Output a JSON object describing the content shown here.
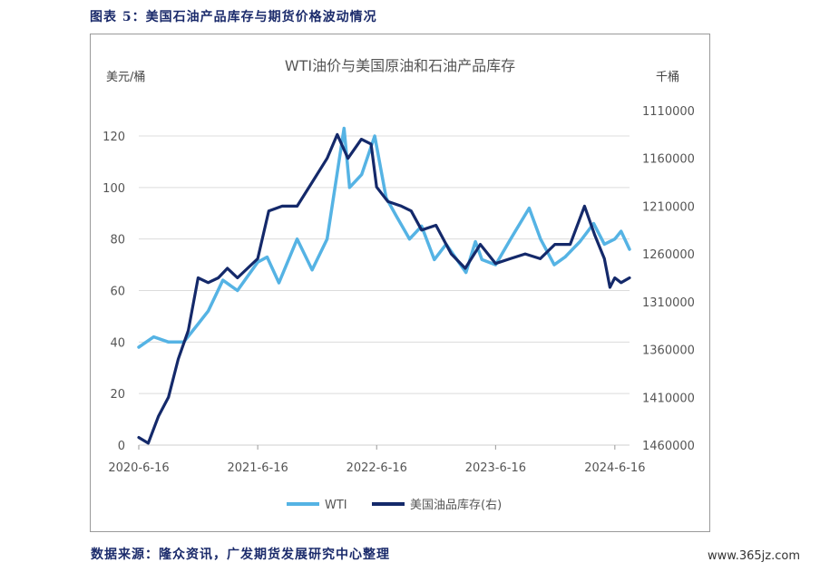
{
  "figure_title": "图表 5：美国石油产品库存与期货价格波动情况",
  "source_note": "数据来源：隆众资讯，广发期货发展研究中心整理",
  "watermark": "www.365jz.com",
  "chart_data": {
    "type": "line",
    "title": "WTI油价与美国原油和石油产品库存",
    "ylabel_left": "美元/桶",
    "ylabel_right": "千桶",
    "left_axis": {
      "min": 0,
      "max": 120,
      "ticks": [
        0,
        20,
        40,
        60,
        80,
        100,
        120
      ]
    },
    "right_axis": {
      "min": 1110000,
      "max": 1460000,
      "inverted": true,
      "ticks": [
        1110000,
        1160000,
        1210000,
        1260000,
        1310000,
        1360000,
        1410000,
        1460000
      ]
    },
    "x_ticks": [
      "2020-6-16",
      "2021-6-16",
      "2022-6-16",
      "2023-6-16",
      "2024-6-16"
    ],
    "x_range": [
      "2020-6-16",
      "2024-7-31"
    ],
    "legend_position": "bottom",
    "grid": "horizontal",
    "colors": {
      "wti": "#55b3e4",
      "inventory": "#14296a"
    },
    "series": [
      {
        "name": "WTI",
        "axis": "left",
        "x": [
          "2020-6-16",
          "2020-8-1",
          "2020-9-15",
          "2020-11-1",
          "2020-12-15",
          "2021-1-15",
          "2021-3-1",
          "2021-4-15",
          "2021-6-16",
          "2021-7-15",
          "2021-8-20",
          "2021-10-15",
          "2021-11-30",
          "2022-1-15",
          "2022-3-8",
          "2022-3-25",
          "2022-5-1",
          "2022-6-10",
          "2022-7-15",
          "2022-8-15",
          "2022-9-25",
          "2022-11-1",
          "2022-12-10",
          "2023-1-15",
          "2023-3-17",
          "2023-4-15",
          "2023-5-5",
          "2023-6-16",
          "2023-8-1",
          "2023-9-27",
          "2023-11-1",
          "2023-12-13",
          "2024-1-15",
          "2024-3-1",
          "2024-4-12",
          "2024-5-15",
          "2024-6-16",
          "2024-7-5",
          "2024-7-31"
        ],
        "values": [
          38,
          42,
          40,
          40,
          47,
          52,
          64,
          60,
          71,
          73,
          63,
          80,
          68,
          80,
          123,
          100,
          105,
          120,
          96,
          89,
          80,
          85,
          72,
          78,
          67,
          79,
          72,
          70,
          80,
          92,
          80,
          70,
          73,
          79,
          86,
          78,
          80,
          83,
          76
        ]
      },
      {
        "name": "美国油品库存(右)",
        "axis": "right",
        "x": [
          "2020-6-16",
          "2020-7-15",
          "2020-8-15",
          "2020-9-15",
          "2020-10-15",
          "2020-11-15",
          "2020-12-15",
          "2021-1-15",
          "2021-2-15",
          "2021-3-15",
          "2021-4-15",
          "2021-6-16",
          "2021-7-20",
          "2021-8-30",
          "2021-10-15",
          "2021-11-30",
          "2022-1-15",
          "2022-2-15",
          "2022-3-20",
          "2022-4-30",
          "2022-5-30",
          "2022-6-16",
          "2022-7-20",
          "2022-8-31",
          "2022-9-30",
          "2022-11-1",
          "2022-12-15",
          "2023-1-31",
          "2023-3-15",
          "2023-4-30",
          "2023-6-16",
          "2023-7-31",
          "2023-9-15",
          "2023-10-31",
          "2023-12-15",
          "2024-1-31",
          "2024-3-15",
          "2024-4-15",
          "2024-5-15",
          "2024-6-1",
          "2024-6-16",
          "2024-7-5",
          "2024-7-31"
        ],
        "values": [
          1452000,
          1458000,
          1430000,
          1410000,
          1370000,
          1340000,
          1285000,
          1290000,
          1285000,
          1275000,
          1285000,
          1265000,
          1215000,
          1210000,
          1210000,
          1185000,
          1160000,
          1135000,
          1160000,
          1140000,
          1145000,
          1190000,
          1205000,
          1210000,
          1215000,
          1235000,
          1230000,
          1260000,
          1275000,
          1250000,
          1270000,
          1265000,
          1260000,
          1265000,
          1250000,
          1250000,
          1210000,
          1240000,
          1265000,
          1295000,
          1285000,
          1290000,
          1285000
        ]
      }
    ]
  }
}
